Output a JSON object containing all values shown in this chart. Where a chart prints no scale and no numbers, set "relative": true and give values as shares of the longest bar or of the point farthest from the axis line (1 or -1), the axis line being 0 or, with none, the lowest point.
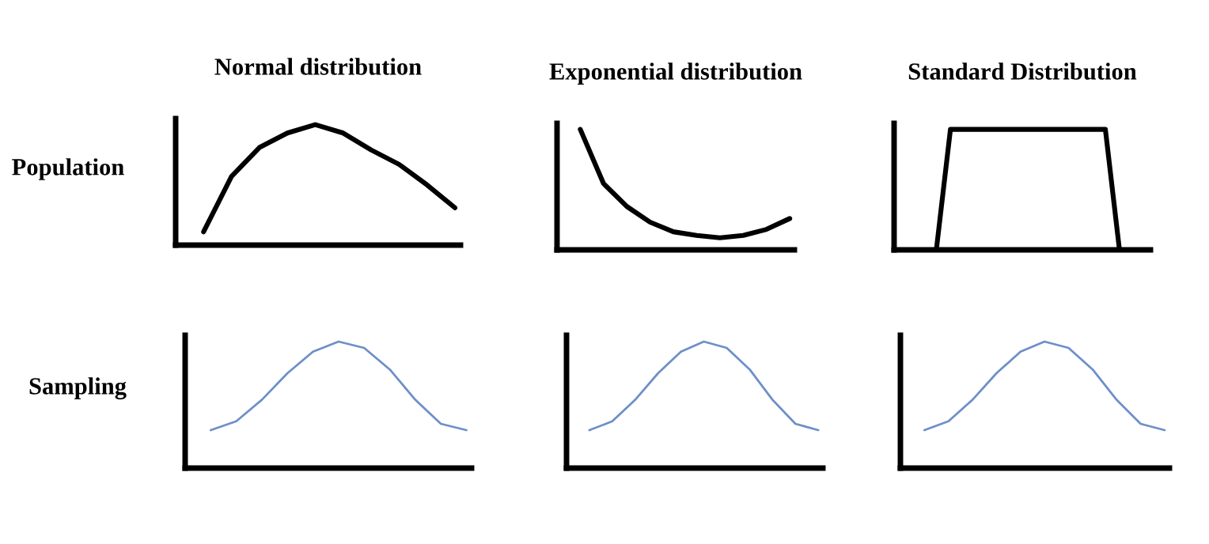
{
  "chart_data": [
    {
      "type": "line",
      "title": "Normal distribution",
      "ylabel": "Population",
      "relative": true,
      "categories": [
        null,
        null,
        null,
        null,
        null,
        null,
        null,
        null,
        null,
        null
      ],
      "series": [
        {
          "color": "#000000",
          "values": [
            0.11,
            0.57,
            0.81,
            0.93,
            1.0,
            0.93,
            0.79,
            0.67,
            0.5,
            0.31
          ]
        }
      ]
    },
    {
      "type": "line",
      "title": "Exponential distribution",
      "relative": true,
      "categories": [
        null,
        null,
        null,
        null,
        null,
        null,
        null,
        null,
        null,
        null
      ],
      "series": [
        {
          "color": "#000000",
          "values": [
            1.0,
            0.55,
            0.36,
            0.23,
            0.15,
            0.12,
            0.1,
            0.12,
            0.17,
            0.26
          ]
        }
      ]
    },
    {
      "type": "line",
      "title": "Standard Distribution",
      "relative": true,
      "categories": [
        null,
        null,
        null,
        null,
        null,
        null,
        null,
        null,
        null,
        null,
        null,
        null,
        null,
        null,
        null,
        null,
        null,
        null
      ],
      "series": [
        {
          "color": "#000000",
          "values": [
            0,
            0,
            0,
            1.0,
            1.0,
            1.0,
            1.0,
            1.0,
            1.0,
            1.0,
            1.0,
            1.0,
            1.0,
            1.0,
            1.0,
            0,
            0,
            0
          ]
        }
      ]
    },
    {
      "type": "line",
      "ylabel": "Sampling",
      "relative": true,
      "categories": [
        null,
        null,
        null,
        null,
        null,
        null,
        null,
        null,
        null,
        null,
        null
      ],
      "series": [
        {
          "color": "#6f8fc8",
          "values": [
            0.3,
            0.37,
            0.54,
            0.75,
            0.92,
            1.0,
            0.95,
            0.78,
            0.54,
            0.35,
            0.3
          ]
        }
      ]
    },
    {
      "type": "line",
      "relative": true,
      "categories": [
        null,
        null,
        null,
        null,
        null,
        null,
        null,
        null,
        null,
        null,
        null
      ],
      "series": [
        {
          "color": "#6f8fc8",
          "values": [
            0.3,
            0.37,
            0.54,
            0.75,
            0.92,
            1.0,
            0.95,
            0.78,
            0.54,
            0.35,
            0.3
          ]
        }
      ]
    },
    {
      "type": "line",
      "relative": true,
      "categories": [
        null,
        null,
        null,
        null,
        null,
        null,
        null,
        null,
        null,
        null,
        null
      ],
      "series": [
        {
          "color": "#6f8fc8",
          "values": [
            0.3,
            0.37,
            0.54,
            0.75,
            0.92,
            1.0,
            0.95,
            0.78,
            0.54,
            0.35,
            0.3
          ]
        }
      ]
    }
  ]
}
